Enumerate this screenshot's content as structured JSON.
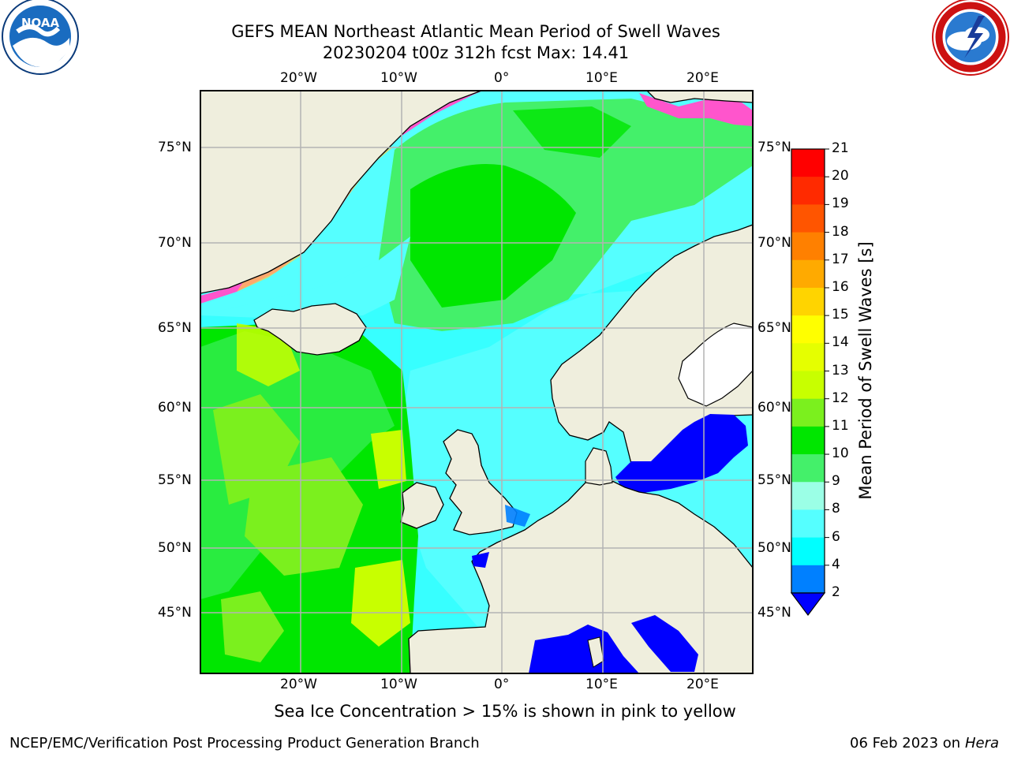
{
  "title_line1": "GEFS MEAN Northeast Atlantic Mean Period of Swell Waves",
  "title_line2": "20230204 t00z 312h fcst   Max: 14.41",
  "caption": "Sea Ice Concentration > 15% is shown in pink to yellow",
  "footer_left": "NCEP/EMC/Verification Post Processing Product Generation Branch",
  "footer_right_date": "06 Feb 2023 on",
  "footer_right_host": "Hera",
  "logos": {
    "left": {
      "name": "noaa-logo",
      "text": "NOAA"
    },
    "right": {
      "name": "nws-logo"
    }
  },
  "map": {
    "lon_labels": [
      "20°W",
      "10°W",
      "0°",
      "10°E",
      "20°E"
    ],
    "lat_labels": [
      "75°N",
      "70°N",
      "65°N",
      "60°N",
      "55°N",
      "50°N",
      "45°N"
    ]
  },
  "colorbar": {
    "title": "Mean Period of Swell Waves [s]",
    "ticks": [
      "21",
      "20",
      "19",
      "18",
      "17",
      "16",
      "15",
      "14",
      "13",
      "12",
      "11",
      "10",
      "9",
      "8",
      "6",
      "4",
      "2"
    ],
    "colors": [
      "#ff0000",
      "#ff2a00",
      "#ff5500",
      "#ff8000",
      "#ffaa00",
      "#ffd400",
      "#ffff00",
      "#e5ff00",
      "#c8ff00",
      "#7bf01e",
      "#00e600",
      "#44f06a",
      "#9bffe6",
      "#55ffff",
      "#00ffff",
      "#0080ff",
      "#0000ff"
    ]
  },
  "colors": {
    "land": "#efeedd",
    "ice_pink": "#ff55cc",
    "ice_yellow": "#ffcc44"
  }
}
